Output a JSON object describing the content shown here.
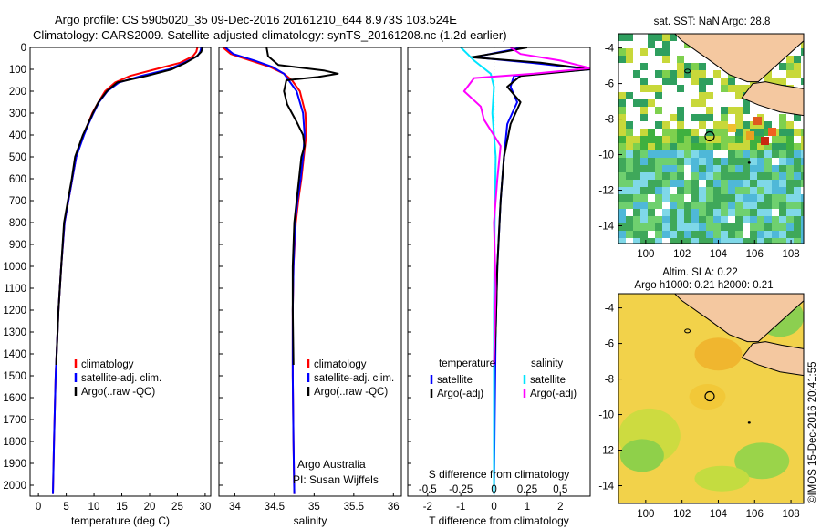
{
  "header": {
    "line1": "Argo profile: CS 5905020_35 09-Dec-2016 20161210_644 8.973S 103.524E",
    "line2": "Climatology: CARS2009. Satellite-adjusted climatology: synTS_20161208.nc (1.2d earlier)"
  },
  "footer": {
    "credit": "Argo Australia",
    "pi": "PI: Susan Wijffels",
    "timestamp": "©IMOS 15-Dec-2016 20:41:55"
  },
  "colors": {
    "climatology": "#ff0000",
    "satellite": "#0000ff",
    "argo": "#000000",
    "satellite_salinity": "#00e5ff",
    "argo_salinity_diff": "#ff00ff",
    "land": "#f4c8a0"
  },
  "chart_data": [
    {
      "id": "temperature",
      "type": "line",
      "xlabel": "temperature (deg C)",
      "ylabel": "",
      "xlim": [
        -1.5,
        31
      ],
      "ylim": [
        2050,
        0
      ],
      "xticks": [
        "0",
        "5",
        "10",
        "15",
        "20",
        "25",
        "30"
      ],
      "yticks": [
        "0",
        "100",
        "200",
        "300",
        "400",
        "500",
        "600",
        "700",
        "800",
        "900",
        "1000",
        "1100",
        "1200",
        "1300",
        "1400",
        "1500",
        "1600",
        "1700",
        "1800",
        "1900",
        "2000"
      ],
      "legend": [
        "climatology",
        "satellite-adj. clim.",
        "Argo(..raw -QC)"
      ],
      "legend_position": "lower-center",
      "series": [
        {
          "name": "climatology",
          "color": "#ff0000",
          "x": [
            28.6,
            28.4,
            27.8,
            25.5,
            21,
            16.5,
            13.8,
            12,
            10.8,
            9.7,
            8.9,
            8.1,
            7.4,
            6.8,
            6.1,
            5.4,
            4.7,
            4.1,
            3.6,
            3.1,
            2.8,
            2.6
          ],
          "y": [
            0,
            20,
            40,
            70,
            100,
            130,
            160,
            200,
            250,
            300,
            350,
            400,
            450,
            500,
            600,
            700,
            800,
            1000,
            1200,
            1500,
            1800,
            2040
          ]
        },
        {
          "name": "satellite-adj. clim.",
          "color": "#0000ff",
          "x": [
            29.3,
            29.1,
            28.6,
            26.2,
            23.5,
            18.5,
            14.5,
            12.4,
            10.9,
            9.9,
            9.0,
            8.2,
            7.5,
            6.8,
            6.1,
            5.4,
            4.7,
            4.1,
            3.6,
            3.1,
            2.8,
            2.6
          ],
          "y": [
            0,
            20,
            40,
            70,
            100,
            130,
            160,
            200,
            250,
            300,
            350,
            400,
            450,
            500,
            600,
            700,
            800,
            1000,
            1200,
            1500,
            1800,
            2040
          ]
        },
        {
          "name": "Argo(..raw -QC)",
          "color": "#000000",
          "x": [
            29.5,
            29.3,
            28.5,
            26.5,
            24,
            19.5,
            14.2,
            12.3,
            10.8,
            9.8,
            8.9,
            8.0,
            7.3,
            6.6,
            6.0,
            5.3,
            4.6,
            4.1,
            3.6,
            3.2
          ],
          "y": [
            0,
            20,
            40,
            70,
            100,
            130,
            160,
            200,
            250,
            300,
            350,
            400,
            450,
            500,
            600,
            700,
            800,
            1000,
            1200,
            1450
          ]
        }
      ]
    },
    {
      "id": "salinity",
      "type": "line",
      "xlabel": "salinity",
      "ylabel": "",
      "xlim": [
        33.8,
        36.1
      ],
      "ylim": [
        2050,
        0
      ],
      "xticks": [
        "34",
        "34.5",
        "35",
        "35.5",
        "36"
      ],
      "legend": [
        "climatology",
        "satellite-adj. clim.",
        "Argo(..raw -QC)"
      ],
      "legend_position": "lower-center",
      "series": [
        {
          "name": "climatology",
          "color": "#ff0000",
          "x": [
            33.85,
            33.95,
            34.2,
            34.45,
            34.62,
            34.72,
            34.82,
            34.89,
            34.9,
            34.87,
            34.84,
            34.8,
            34.77,
            34.74,
            34.73,
            34.73,
            34.74,
            34.75
          ],
          "y": [
            0,
            30,
            60,
            90,
            120,
            150,
            200,
            300,
            400,
            500,
            600,
            700,
            800,
            1000,
            1200,
            1500,
            1800,
            2040
          ]
        },
        {
          "name": "satellite-adj. clim.",
          "color": "#0000ff",
          "x": [
            33.88,
            33.98,
            34.25,
            34.48,
            34.62,
            34.68,
            34.78,
            34.86,
            34.88,
            34.86,
            34.83,
            34.79,
            34.76,
            34.74,
            34.73,
            34.73,
            34.74,
            34.75
          ],
          "y": [
            0,
            30,
            60,
            90,
            120,
            150,
            200,
            300,
            400,
            500,
            600,
            700,
            800,
            1000,
            1200,
            1500,
            1800,
            2040
          ]
        },
        {
          "name": "Argo(..raw -QC)",
          "color": "#000000",
          "x": [
            34.4,
            34.42,
            34.55,
            35.12,
            35.3,
            35.05,
            34.65,
            34.62,
            34.66,
            34.72,
            34.78,
            34.86,
            34.88,
            34.84,
            34.81,
            34.78,
            34.75,
            34.73,
            34.73,
            34.74
          ],
          "y": [
            0,
            40,
            80,
            105,
            120,
            135,
            150,
            200,
            260,
            300,
            340,
            400,
            450,
            500,
            600,
            700,
            800,
            1000,
            1200,
            1450
          ]
        }
      ]
    },
    {
      "id": "differences",
      "type": "line",
      "xlabel": "T difference from climatology",
      "xlabel2": "S difference from climatology",
      "ylabel": "",
      "xlim": [
        -2.6,
        2.9
      ],
      "ylim": [
        2050,
        0
      ],
      "xticks": [
        "-2",
        "-1",
        "0",
        "1",
        "2"
      ],
      "xticks_s": [
        "-0.5",
        "-0.25",
        "0",
        "0.25",
        "0.5"
      ],
      "legend_groups": [
        "temperature",
        "salinity"
      ],
      "legend": [
        "satellite",
        "Argo(-adj)",
        "satellite",
        "Argo(-adj)"
      ],
      "legend_position": "lower-center",
      "series": [
        {
          "name": "satellite",
          "group": "temperature",
          "color": "#0000ff",
          "x": [
            0.9,
            0.2,
            -0.6,
            1.1,
            2.9,
            0.6,
            0.5,
            0.7,
            0.4,
            0.3,
            0.2,
            0.1,
            0.05,
            0.02,
            0.0
          ],
          "y": [
            0,
            20,
            45,
            70,
            100,
            130,
            180,
            250,
            350,
            500,
            700,
            1000,
            1300,
            1700,
            2040
          ]
        },
        {
          "name": "Argo(-adj)",
          "group": "temperature",
          "color": "#000000",
          "x": [
            1.0,
            0.3,
            -0.7,
            1.4,
            2.9,
            0.8,
            0.4,
            0.8,
            0.5,
            0.3,
            0.2,
            0.1,
            0.05,
            0.0
          ],
          "y": [
            0,
            20,
            45,
            70,
            100,
            130,
            180,
            250,
            350,
            500,
            700,
            1000,
            1300,
            1450
          ]
        },
        {
          "name": "satellite",
          "group": "salinity",
          "color": "#00e5ff",
          "x": [
            -1.0,
            -0.8,
            -0.6,
            -0.35,
            -0.1,
            0.0,
            -0.05,
            0.05,
            0.02,
            0.0,
            0.0
          ],
          "y": [
            0,
            30,
            60,
            90,
            120,
            180,
            300,
            500,
            800,
            1200,
            2040
          ]
        },
        {
          "name": "Argo(-adj)",
          "group": "salinity",
          "color": "#ff00ff",
          "x": [
            0.5,
            0.8,
            2.0,
            2.9,
            1.2,
            -0.6,
            -0.9,
            -0.4,
            -0.3,
            0.2,
            0.1,
            0.0,
            0.05,
            0.0
          ],
          "y": [
            0,
            30,
            60,
            95,
            120,
            140,
            200,
            270,
            330,
            450,
            600,
            800,
            1100,
            1450
          ]
        }
      ]
    },
    {
      "id": "sst_map",
      "type": "heatmap",
      "title": "sat. SST: NaN Argo: 28.8",
      "xlim": [
        98.5,
        108.7
      ],
      "ylim": [
        -15,
        -3.2
      ],
      "xticks": [
        "100",
        "102",
        "104",
        "106",
        "108"
      ],
      "yticks": [
        "-4",
        "-6",
        "-8",
        "-10",
        "-12",
        "-14"
      ],
      "marker": {
        "lon": 103.524,
        "lat": -8.973
      }
    },
    {
      "id": "sla_map",
      "type": "heatmap",
      "title": "Altim. SLA: 0.22",
      "subtitle": "Argo h1000: 0.21 h2000: 0.21",
      "xlim": [
        98.5,
        108.7
      ],
      "ylim": [
        -15,
        -3.2
      ],
      "xticks": [
        "100",
        "102",
        "104",
        "106",
        "108"
      ],
      "yticks": [
        "-4",
        "-6",
        "-8",
        "-10",
        "-12",
        "-14"
      ],
      "marker": {
        "lon": 103.524,
        "lat": -8.973
      }
    }
  ]
}
